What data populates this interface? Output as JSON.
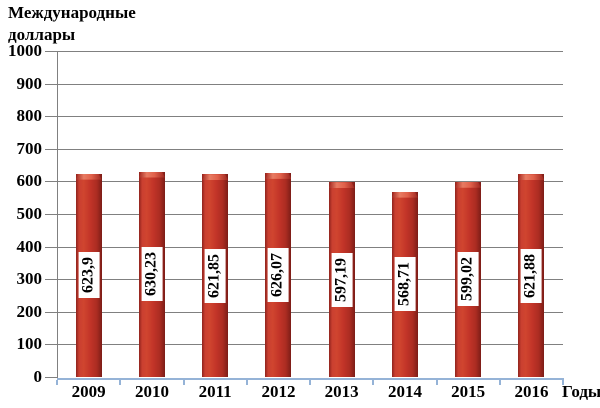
{
  "y_axis_title": {
    "line1": "Международные",
    "line2": "доллары"
  },
  "chart_data": {
    "type": "bar",
    "title": "Международные доллары",
    "xlabel": "Годы",
    "ylabel": "Международные доллары",
    "categories": [
      "2009",
      "2010",
      "2011",
      "2012",
      "2013",
      "2014",
      "2015",
      "2016"
    ],
    "values": [
      623.9,
      630.23,
      621.85,
      626.07,
      597.19,
      568.71,
      599.02,
      621.88
    ],
    "value_labels": [
      "623,9",
      "630,23",
      "621,85",
      "626,07",
      "597,19",
      "568,71",
      "599,02",
      "621,88"
    ],
    "value_labels_rotated": true,
    "ylim": [
      0,
      1000
    ],
    "ytick_step": 100,
    "ytick_labels": [
      "0",
      "100",
      "200",
      "300",
      "400",
      "500",
      "600",
      "700",
      "800",
      "900",
      "1000"
    ],
    "grid": "horizontal",
    "legend": "none",
    "colors": {
      "bar": "#c23428",
      "bar_edge_dark": "#7c1d17",
      "bar_top_highlight": "#e87b62",
      "gridline": "#808080",
      "value_axis": "#808080",
      "category_axis": "#95b3d7",
      "text": "#000000",
      "value_label_background": "#ffffff"
    }
  }
}
